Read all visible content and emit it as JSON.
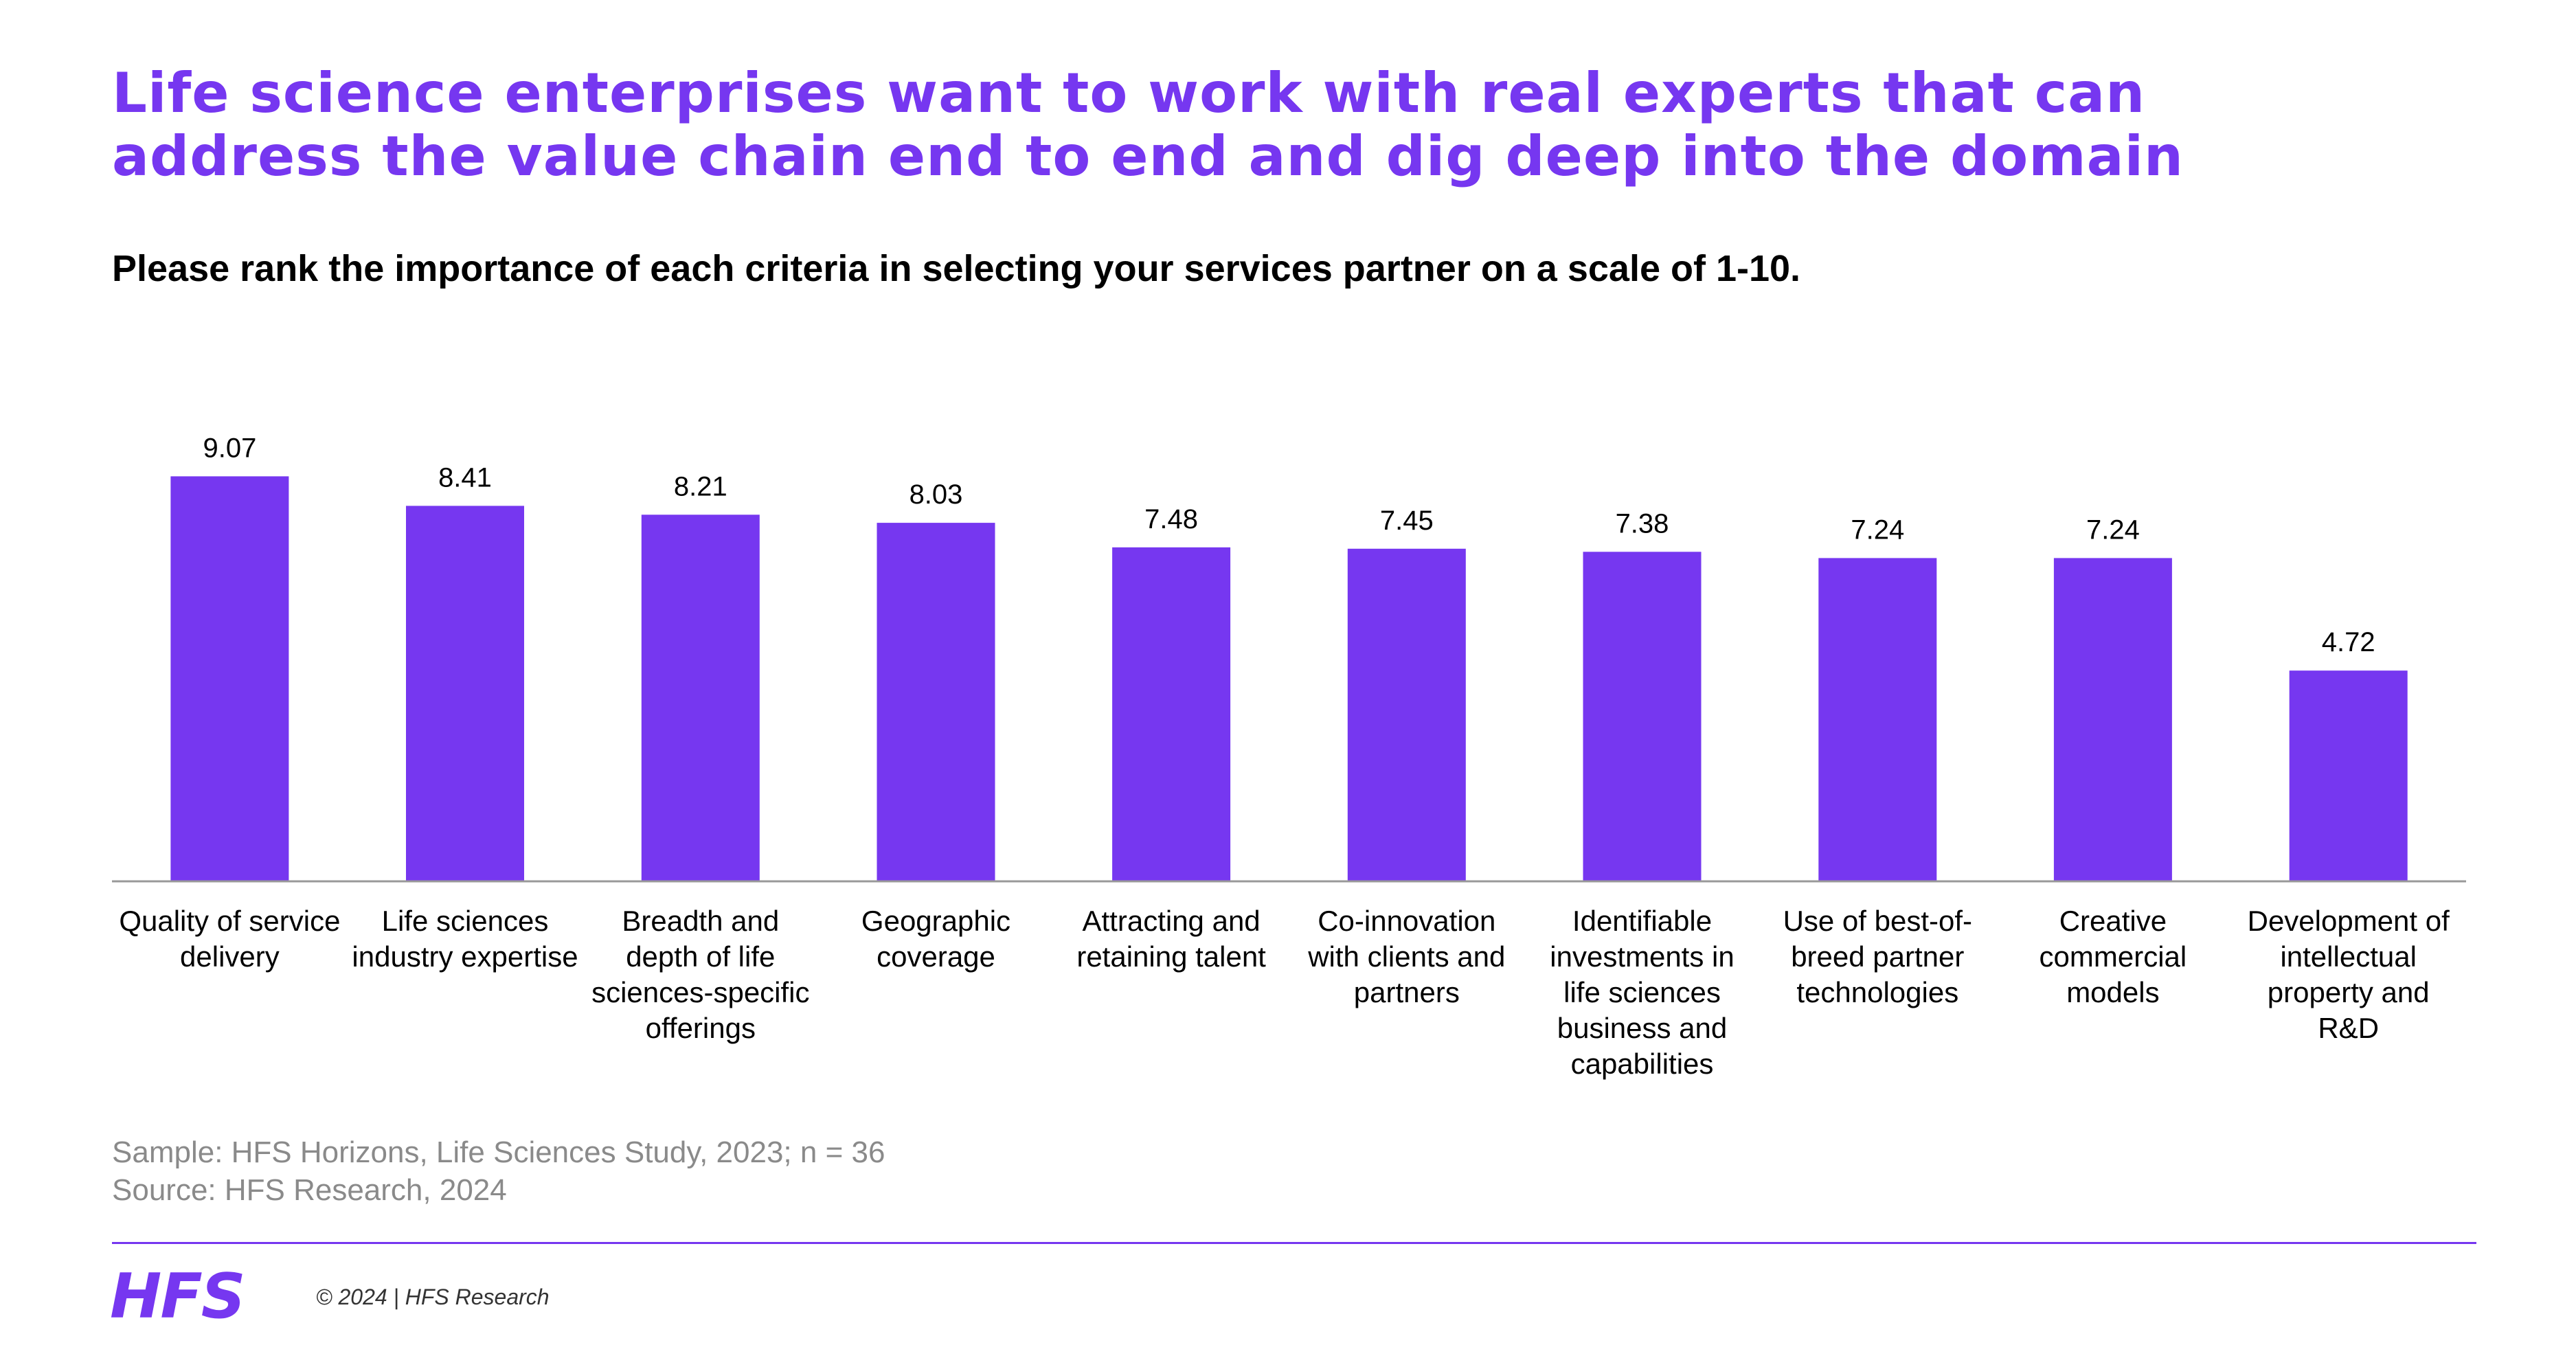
{
  "header": {
    "headline_line1": "Life science enterprises want to work with real experts that can",
    "headline_line2": "address the value chain end to end and dig deep into the domain",
    "question": "Please rank the importance of each criteria in selecting your services partner on a scale of 1-10."
  },
  "colors": {
    "accent": "#7637f0",
    "bar": "#7637f0",
    "axis": "#999999",
    "footnote": "#8a8a8a"
  },
  "chart_data": {
    "type": "bar",
    "title": "",
    "xlabel": "",
    "ylabel": "",
    "ylim": [
      0,
      10
    ],
    "grid": false,
    "categories": [
      [
        "Quality of service",
        "delivery"
      ],
      [
        "Life sciences",
        "industry expertise"
      ],
      [
        "Breadth and",
        "depth of life",
        "sciences-specific",
        "offerings"
      ],
      [
        "Geographic",
        "coverage"
      ],
      [
        "Attracting and",
        "retaining talent"
      ],
      [
        "Co-innovation",
        "with clients and",
        "partners"
      ],
      [
        "Identifiable",
        "investments in",
        "life sciences",
        "business and",
        "capabilities"
      ],
      [
        "Use of best-of-",
        "breed partner",
        "technologies"
      ],
      [
        "Creative",
        "commercial",
        "models"
      ],
      [
        "Development of",
        "intellectual",
        "property and",
        "R&D"
      ]
    ],
    "values": [
      9.07,
      8.41,
      8.21,
      8.03,
      7.48,
      7.45,
      7.38,
      7.24,
      7.24,
      4.72
    ],
    "value_labels": [
      "9.07",
      "8.41",
      "8.21",
      "8.03",
      "7.48",
      "7.45",
      "7.38",
      "7.24",
      "7.24",
      "4.72"
    ]
  },
  "footer": {
    "sample": "Sample: HFS Horizons, Life Sciences Study, 2023; n = 36",
    "source": "Source: HFS Research, 2024",
    "logo": "HFS",
    "copyright": "© 2024 | HFS Research"
  }
}
